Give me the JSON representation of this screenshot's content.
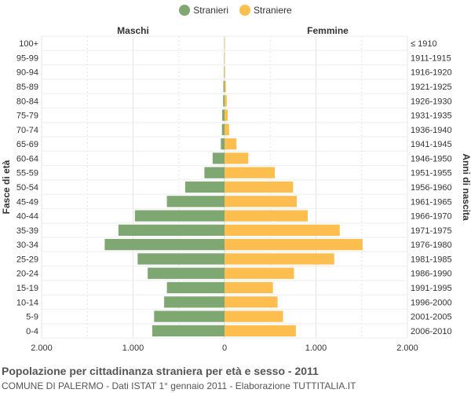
{
  "legend": {
    "items": [
      {
        "label": "Stranieri",
        "color": "#7fa772"
      },
      {
        "label": "Straniere",
        "color": "#fcbf4f"
      }
    ]
  },
  "headers": {
    "left": "Maschi",
    "right": "Femmine"
  },
  "axes": {
    "left_title": "Fasce di età",
    "right_title": "Anni di nascita",
    "x_ticks": [
      "2.000",
      "1.000",
      "0",
      "1.000",
      "2.000"
    ]
  },
  "footer": {
    "title": "Popolazione per cittadinanza straniera per età e sesso - 2011",
    "subtitle": "COMUNE DI PALERMO - Dati ISTAT 1° gennaio 2011 - Elaborazione TUTTITALIA.IT"
  },
  "chart_data": {
    "type": "bar",
    "orientation": "horizontal-pyramid",
    "categories": [
      "100+",
      "95-99",
      "90-94",
      "85-89",
      "80-84",
      "75-79",
      "70-74",
      "65-69",
      "60-64",
      "55-59",
      "50-54",
      "45-49",
      "40-44",
      "35-39",
      "30-34",
      "25-29",
      "20-24",
      "15-19",
      "10-14",
      "5-9",
      "0-4"
    ],
    "birth_years": [
      "≤ 1910",
      "1911-1915",
      "1916-1920",
      "1921-1925",
      "1926-1930",
      "1931-1935",
      "1936-1940",
      "1941-1945",
      "1946-1950",
      "1951-1955",
      "1956-1960",
      "1961-1965",
      "1966-1970",
      "1971-1975",
      "1976-1980",
      "1981-1985",
      "1986-1990",
      "1991-1995",
      "1996-2000",
      "2001-2005",
      "2006-2010"
    ],
    "series": [
      {
        "name": "Stranieri",
        "values": [
          2,
          3,
          5,
          12,
          15,
          25,
          28,
          40,
          130,
          220,
          430,
          630,
          980,
          1160,
          1310,
          950,
          840,
          630,
          660,
          770,
          790
        ]
      },
      {
        "name": "Straniere",
        "values": [
          3,
          4,
          6,
          15,
          25,
          35,
          50,
          130,
          260,
          550,
          750,
          790,
          910,
          1260,
          1510,
          1200,
          760,
          530,
          580,
          640,
          780
        ]
      }
    ],
    "xlim": [
      -2000,
      2000
    ],
    "grid": true,
    "legend_position": "top"
  }
}
